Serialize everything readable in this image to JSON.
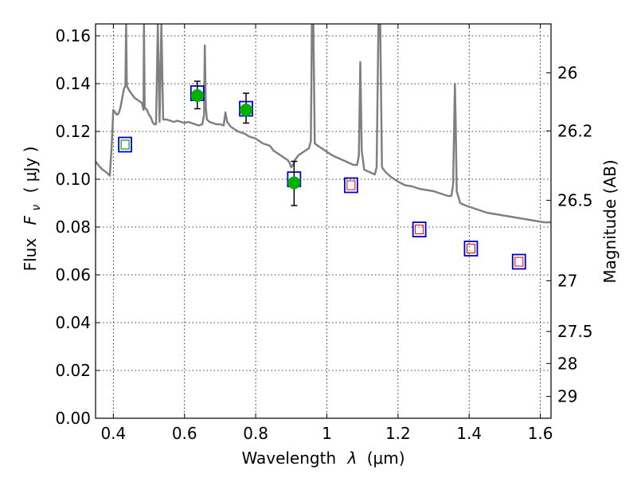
{
  "chart_data": {
    "type": "scatter",
    "xlabel_text": "Wavelength",
    "xlabel_symbol": "λ",
    "xlabel_unit": "(μm)",
    "ylabel_text": "Flux",
    "ylabel_symbol_base": "F",
    "ylabel_symbol_sub": "ν",
    "ylabel_unit": "( μJy )",
    "y2label": "Magnitude (AB)",
    "xlim": [
      0.35,
      1.63
    ],
    "ylim": [
      0.0,
      0.165
    ],
    "x_ticks": [
      0.4,
      0.6,
      0.8,
      1.0,
      1.2,
      1.4,
      1.6
    ],
    "x_tick_labels": [
      "0.4",
      "0.6",
      "0.8",
      "1",
      "1.2",
      "1.4",
      "1.6"
    ],
    "y_ticks": [
      0.0,
      0.02,
      0.04,
      0.06,
      0.08,
      0.1,
      0.12,
      0.14,
      0.16
    ],
    "y_tick_labels": [
      "0.00",
      "0.02",
      "0.04",
      "0.06",
      "0.08",
      "0.10",
      "0.12",
      "0.14",
      "0.16"
    ],
    "y2_ticks": [
      26,
      26.2,
      26.5,
      27,
      27.5,
      28,
      29
    ],
    "y2_tick_labels": [
      "26",
      "26.2",
      "26.5",
      "27",
      "27.5",
      "28",
      "29"
    ],
    "grid": true,
    "colors": {
      "model": "#808080",
      "detection": "#00b000",
      "model_flux_box": "#0000cc",
      "nondetection_box": "#e00000",
      "wfc3_green_box": "#00a000"
    },
    "model_sed": [
      [
        0.35,
        0.1075
      ],
      [
        0.36,
        0.1055
      ],
      [
        0.37,
        0.104
      ],
      [
        0.38,
        0.103
      ],
      [
        0.39,
        0.1015
      ],
      [
        0.395,
        0.113
      ],
      [
        0.398,
        0.123
      ],
      [
        0.4,
        0.129
      ],
      [
        0.405,
        0.128
      ],
      [
        0.41,
        0.127
      ],
      [
        0.415,
        0.1275
      ],
      [
        0.42,
        0.13
      ],
      [
        0.425,
        0.134
      ],
      [
        0.43,
        0.138
      ],
      [
        0.434,
        0.139
      ],
      [
        0.436,
        0.165
      ],
      [
        0.438,
        0.139
      ],
      [
        0.445,
        0.137
      ],
      [
        0.45,
        0.136
      ],
      [
        0.46,
        0.134
      ],
      [
        0.47,
        0.133
      ],
      [
        0.48,
        0.132
      ],
      [
        0.485,
        0.129
      ],
      [
        0.486,
        0.165
      ],
      [
        0.488,
        0.13
      ],
      [
        0.495,
        0.129
      ],
      [
        0.5,
        0.127
      ],
      [
        0.505,
        0.126
      ],
      [
        0.51,
        0.124
      ],
      [
        0.515,
        0.123
      ],
      [
        0.52,
        0.123
      ],
      [
        0.525,
        0.165
      ],
      [
        0.53,
        0.124
      ],
      [
        0.535,
        0.165
      ],
      [
        0.54,
        0.125
      ],
      [
        0.55,
        0.125
      ],
      [
        0.56,
        0.1245
      ],
      [
        0.57,
        0.124
      ],
      [
        0.58,
        0.1245
      ],
      [
        0.59,
        0.124
      ],
      [
        0.6,
        0.1235
      ],
      [
        0.61,
        0.124
      ],
      [
        0.62,
        0.1235
      ],
      [
        0.63,
        0.123
      ],
      [
        0.64,
        0.1225
      ],
      [
        0.65,
        0.123
      ],
      [
        0.655,
        0.127
      ],
      [
        0.657,
        0.156
      ],
      [
        0.66,
        0.13
      ],
      [
        0.663,
        0.125
      ],
      [
        0.67,
        0.124
      ],
      [
        0.68,
        0.1235
      ],
      [
        0.69,
        0.123
      ],
      [
        0.7,
        0.123
      ],
      [
        0.71,
        0.1225
      ],
      [
        0.715,
        0.128
      ],
      [
        0.72,
        0.124
      ],
      [
        0.73,
        0.122
      ],
      [
        0.74,
        0.121
      ],
      [
        0.75,
        0.12
      ],
      [
        0.76,
        0.1195
      ],
      [
        0.77,
        0.119
      ],
      [
        0.78,
        0.118
      ],
      [
        0.79,
        0.1175
      ],
      [
        0.8,
        0.117
      ],
      [
        0.81,
        0.116
      ],
      [
        0.82,
        0.115
      ],
      [
        0.83,
        0.1145
      ],
      [
        0.84,
        0.114
      ],
      [
        0.85,
        0.112
      ],
      [
        0.86,
        0.111
      ],
      [
        0.87,
        0.11
      ],
      [
        0.88,
        0.109
      ],
      [
        0.89,
        0.108
      ],
      [
        0.895,
        0.107
      ],
      [
        0.9,
        0.105
      ],
      [
        0.905,
        0.106
      ],
      [
        0.91,
        0.108
      ],
      [
        0.92,
        0.11
      ],
      [
        0.93,
        0.111
      ],
      [
        0.94,
        0.112
      ],
      [
        0.95,
        0.113
      ],
      [
        0.955,
        0.116
      ],
      [
        0.958,
        0.165
      ],
      [
        0.962,
        0.165
      ],
      [
        0.966,
        0.115
      ],
      [
        0.975,
        0.114
      ],
      [
        0.985,
        0.113
      ],
      [
        0.995,
        0.112
      ],
      [
        1.005,
        0.111
      ],
      [
        1.015,
        0.11
      ],
      [
        1.03,
        0.109
      ],
      [
        1.045,
        0.108
      ],
      [
        1.06,
        0.107
      ],
      [
        1.075,
        0.106
      ],
      [
        1.085,
        0.106
      ],
      [
        1.09,
        0.11
      ],
      [
        1.094,
        0.149
      ],
      [
        1.098,
        0.112
      ],
      [
        1.105,
        0.104
      ],
      [
        1.12,
        0.103
      ],
      [
        1.135,
        0.102
      ],
      [
        1.14,
        0.105
      ],
      [
        1.145,
        0.165
      ],
      [
        1.15,
        0.165
      ],
      [
        1.155,
        0.105
      ],
      [
        1.165,
        0.103
      ],
      [
        1.18,
        0.101
      ],
      [
        1.2,
        0.099
      ],
      [
        1.22,
        0.0975
      ],
      [
        1.24,
        0.097
      ],
      [
        1.26,
        0.096
      ],
      [
        1.28,
        0.0955
      ],
      [
        1.3,
        0.095
      ],
      [
        1.32,
        0.094
      ],
      [
        1.34,
        0.093
      ],
      [
        1.35,
        0.093
      ],
      [
        1.355,
        0.098
      ],
      [
        1.358,
        0.125
      ],
      [
        1.36,
        0.14
      ],
      [
        1.362,
        0.125
      ],
      [
        1.365,
        0.095
      ],
      [
        1.375,
        0.09
      ],
      [
        1.39,
        0.089
      ],
      [
        1.41,
        0.088
      ],
      [
        1.43,
        0.087
      ],
      [
        1.45,
        0.086
      ],
      [
        1.47,
        0.0855
      ],
      [
        1.49,
        0.085
      ],
      [
        1.51,
        0.0845
      ],
      [
        1.53,
        0.084
      ],
      [
        1.55,
        0.0835
      ],
      [
        1.57,
        0.083
      ],
      [
        1.59,
        0.0825
      ],
      [
        1.61,
        0.082
      ],
      [
        1.63,
        0.082
      ]
    ],
    "detections": [
      {
        "x": 0.636,
        "y": 0.135,
        "yerr_low": 0.0055,
        "yerr_high": 0.006
      },
      {
        "x": 0.773,
        "y": 0.129,
        "yerr_low": 0.0055,
        "yerr_high": 0.007
      },
      {
        "x": 0.908,
        "y": 0.0985,
        "yerr_low": 0.0095,
        "yerr_high": 0.009
      }
    ],
    "model_flux_boxes": [
      {
        "x": 0.433,
        "y": 0.1145,
        "inner": "green"
      },
      {
        "x": 0.636,
        "y": 0.136,
        "inner": "none"
      },
      {
        "x": 0.773,
        "y": 0.1295,
        "inner": "none"
      },
      {
        "x": 0.908,
        "y": 0.1,
        "inner": "none"
      },
      {
        "x": 1.068,
        "y": 0.0975,
        "inner": "red"
      },
      {
        "x": 1.26,
        "y": 0.079,
        "inner": "red"
      },
      {
        "x": 1.405,
        "y": 0.071,
        "inner": "red"
      },
      {
        "x": 1.54,
        "y": 0.0655,
        "inner": "red"
      }
    ]
  }
}
